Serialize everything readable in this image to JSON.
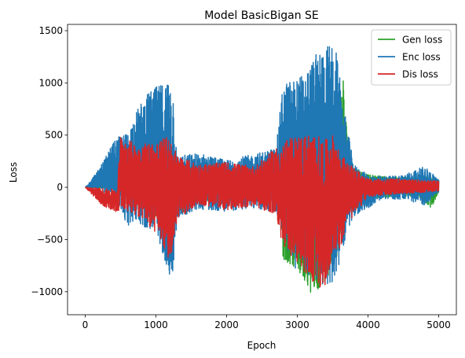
{
  "chart_data": {
    "type": "line",
    "title": "Model BasicBigan SE",
    "xlabel": "Epoch",
    "ylabel": "Loss",
    "xlim": [
      -250,
      5250
    ],
    "ylim": [
      -1220,
      1560
    ],
    "xticks": [
      0,
      1000,
      2000,
      3000,
      4000,
      5000
    ],
    "yticks": [
      -1000,
      -500,
      0,
      500,
      1000,
      1500
    ],
    "ytick_labels": [
      "−1000",
      "−500",
      "0",
      "500",
      "1000",
      "1500"
    ],
    "grid": false,
    "legend_position": "top-right",
    "series": [
      {
        "name": "Gen loss",
        "color": "#2ca02c",
        "envelope": [
          [
            0,
            0,
            0
          ],
          [
            250,
            2,
            -2
          ],
          [
            500,
            5,
            -5
          ],
          [
            600,
            220,
            -100
          ],
          [
            800,
            300,
            -180
          ],
          [
            1000,
            330,
            -330
          ],
          [
            1200,
            350,
            -600
          ],
          [
            1300,
            250,
            -300
          ],
          [
            1600,
            160,
            -140
          ],
          [
            2000,
            120,
            -110
          ],
          [
            2500,
            120,
            -120
          ],
          [
            2750,
            130,
            -130
          ],
          [
            2800,
            480,
            -700
          ],
          [
            3000,
            360,
            -800
          ],
          [
            3200,
            540,
            -1050
          ],
          [
            3400,
            500,
            -900
          ],
          [
            3600,
            900,
            -600
          ],
          [
            3650,
            1060,
            -400
          ],
          [
            3700,
            560,
            -200
          ],
          [
            3800,
            200,
            -220
          ],
          [
            4000,
            120,
            -130
          ],
          [
            4400,
            100,
            -80
          ],
          [
            4700,
            100,
            -100
          ],
          [
            4900,
            110,
            -200
          ],
          [
            5000,
            80,
            -50
          ]
        ]
      },
      {
        "name": "Enc loss",
        "color": "#1f77b4",
        "envelope": [
          [
            0,
            0,
            0
          ],
          [
            200,
            180,
            -40
          ],
          [
            400,
            430,
            -120
          ],
          [
            500,
            500,
            -200
          ],
          [
            600,
            520,
            -400
          ],
          [
            700,
            700,
            -300
          ],
          [
            800,
            820,
            -380
          ],
          [
            900,
            910,
            -400
          ],
          [
            1000,
            960,
            -500
          ],
          [
            1100,
            1000,
            -640
          ],
          [
            1200,
            1070,
            -860
          ],
          [
            1250,
            900,
            -800
          ],
          [
            1300,
            300,
            -300
          ],
          [
            1600,
            330,
            -210
          ],
          [
            2000,
            260,
            -230
          ],
          [
            2400,
            320,
            -200
          ],
          [
            2700,
            380,
            -250
          ],
          [
            2800,
            1000,
            -500
          ],
          [
            3000,
            1050,
            -850
          ],
          [
            3100,
            1100,
            -800
          ],
          [
            3300,
            1310,
            -920
          ],
          [
            3450,
            1380,
            -1000
          ],
          [
            3550,
            1300,
            -850
          ],
          [
            3650,
            800,
            -560
          ],
          [
            3800,
            220,
            -280
          ],
          [
            4000,
            120,
            -200
          ],
          [
            4200,
            100,
            -110
          ],
          [
            4500,
            120,
            -120
          ],
          [
            4800,
            200,
            -170
          ],
          [
            5000,
            80,
            -50
          ]
        ]
      },
      {
        "name": "Dis loss",
        "color": "#d62728",
        "envelope": [
          [
            0,
            0,
            0
          ],
          [
            250,
            -10,
            -180
          ],
          [
            450,
            -20,
            -240
          ],
          [
            500,
            500,
            -200
          ],
          [
            700,
            420,
            -260
          ],
          [
            1000,
            440,
            -440
          ],
          [
            1200,
            500,
            -730
          ],
          [
            1300,
            310,
            -300
          ],
          [
            1600,
            220,
            -170
          ],
          [
            2000,
            240,
            -220
          ],
          [
            2400,
            200,
            -180
          ],
          [
            2700,
            380,
            -280
          ],
          [
            2800,
            440,
            -580
          ],
          [
            3000,
            500,
            -750
          ],
          [
            3200,
            520,
            -900
          ],
          [
            3400,
            460,
            -1000
          ],
          [
            3500,
            500,
            -600
          ],
          [
            3600,
            360,
            -600
          ],
          [
            3700,
            240,
            -360
          ],
          [
            4000,
            80,
            -90
          ],
          [
            4500,
            80,
            -60
          ],
          [
            5000,
            60,
            -40
          ]
        ]
      }
    ]
  }
}
